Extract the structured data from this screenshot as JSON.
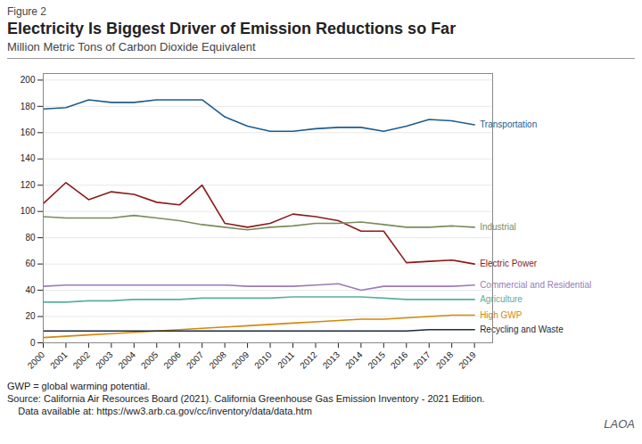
{
  "chart_data": {
    "type": "line",
    "title": "Electricity Is Biggest Driver of Emission Reductions so Far",
    "subtitle": "Million Metric Tons of Carbon Dioxide Equivalent",
    "annotations": [
      "Figure 2",
      "GWP = global warming potential.",
      "Source: California Air Resources Board (2021). California Greenhouse Gas Emission Inventory - 2021 Edition.",
      "    Data available at: https://ww3.arb.ca.gov/cc/inventory/data/data.htm",
      "LAOA"
    ],
    "x": [
      2000,
      2001,
      2002,
      2003,
      2004,
      2005,
      2006,
      2007,
      2008,
      2009,
      2010,
      2011,
      2012,
      2013,
      2014,
      2015,
      2016,
      2017,
      2018,
      2019
    ],
    "series": [
      {
        "name": "Transportation",
        "color": "#1f5c8b",
        "values": [
          178,
          179,
          185,
          183,
          183,
          185,
          185,
          185,
          172,
          165,
          161,
          161,
          163,
          164,
          164,
          161,
          165,
          170,
          169,
          166
        ]
      },
      {
        "name": "Electric Power",
        "color": "#8b1a1a",
        "values": [
          106,
          122,
          109,
          115,
          113,
          107,
          105,
          120,
          91,
          88,
          91,
          98,
          96,
          93,
          85,
          85,
          61,
          62,
          63,
          60
        ]
      },
      {
        "name": "Industrial",
        "color": "#7a8c5a",
        "values": [
          96,
          95,
          95,
          95,
          97,
          95,
          93,
          90,
          88,
          86,
          88,
          89,
          91,
          91,
          92,
          90,
          88,
          88,
          89,
          88
        ]
      },
      {
        "name": "Commercial and Residential",
        "color": "#9b7bb5",
        "values": [
          43,
          44,
          44,
          44,
          44,
          44,
          44,
          44,
          44,
          43,
          43,
          43,
          44,
          45,
          40,
          43,
          43,
          43,
          43,
          44
        ]
      },
      {
        "name": "Agriculture",
        "color": "#5aafa0",
        "values": [
          31,
          31,
          32,
          32,
          33,
          33,
          33,
          34,
          34,
          34,
          34,
          35,
          35,
          35,
          35,
          34,
          33,
          33,
          33,
          33
        ]
      },
      {
        "name": "High GWP",
        "color": "#d4880a",
        "values": [
          4,
          5,
          6,
          7,
          8,
          9,
          10,
          11,
          12,
          13,
          14,
          15,
          16,
          17,
          18,
          18,
          19,
          20,
          21,
          21
        ]
      },
      {
        "name": "Recycling and Waste",
        "color": "#1a2a3a",
        "values": [
          9,
          9,
          9,
          9,
          9,
          9,
          9,
          9,
          9,
          9,
          9,
          9,
          9,
          9,
          9,
          9,
          9,
          10,
          10,
          10
        ]
      }
    ],
    "xlim": [
      2000,
      2019.8
    ],
    "xticks": [
      2000,
      2001,
      2002,
      2003,
      2004,
      2005,
      2006,
      2007,
      2008,
      2009,
      2010,
      2011,
      2012,
      2013,
      2014,
      2015,
      2016,
      2017,
      2018,
      2019
    ],
    "ylim": [
      0,
      205
    ],
    "yticks": [
      0,
      20,
      40,
      60,
      80,
      100,
      120,
      140,
      160,
      180,
      200
    ],
    "grid": "y"
  }
}
